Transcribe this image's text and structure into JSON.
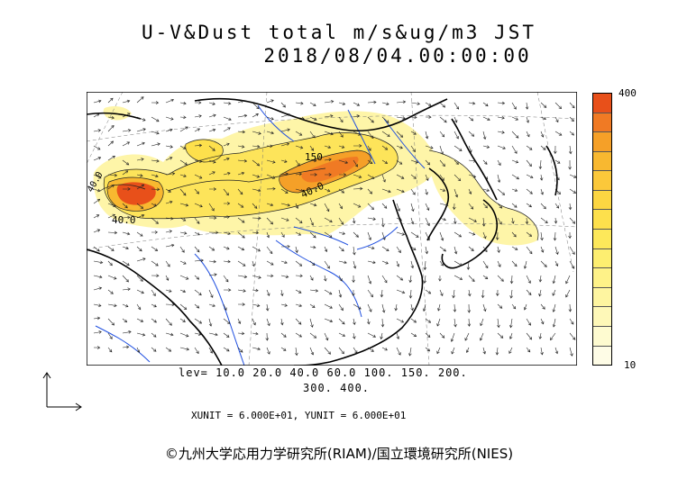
{
  "title": "U-V&Dust total m/s&ug/m3 JST",
  "datetime": "2018/08/04.00:00:00",
  "colorbar": {
    "max_label": "400",
    "min_label": "10",
    "colors": [
      "#e8501a",
      "#f07a24",
      "#f5a028",
      "#f8b830",
      "#fbc83a",
      "#fcd642",
      "#fde04c",
      "#fde85a",
      "#fdee70",
      "#fef288",
      "#fef5a0",
      "#fef8b8",
      "#fefbd0",
      "#fefce6"
    ]
  },
  "contour_levels_line1": "lev= 10.0 20.0 40.0 60.0 100. 150. 200.",
  "contour_levels_line2": "300. 400.",
  "units_line": "XUNIT = 6.000E+01, YUNIT = 6.000E+01",
  "contour_labels": [
    "150",
    "40.0",
    "40.0",
    "40.0"
  ],
  "credit": "©九州大学応用力学研究所(RIAM)/国立環境研究所(NIES)"
}
